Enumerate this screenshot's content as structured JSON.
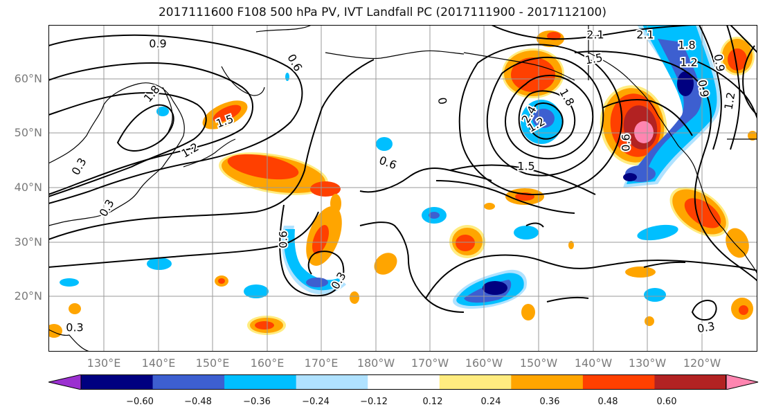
{
  "title": "2017111600 F108 500 hPa PV, IVT Landfall PC (2017111900 - 2017112100)",
  "latitude_labels": [
    "60°N",
    "50°N",
    "40°N",
    "30°N",
    "20°N"
  ],
  "longitude_labels": [
    "130°E",
    "140°E",
    "150°E",
    "160°E",
    "170°E",
    "180°W",
    "170°W",
    "160°W",
    "150°W",
    "140°W",
    "130°W",
    "120°W"
  ],
  "colorbar": {
    "ticks": [
      "−0.60",
      "−0.48",
      "−0.36",
      "−0.24",
      "−0.12",
      "0.12",
      "0.24",
      "0.36",
      "0.48",
      "0.60"
    ],
    "colors": [
      "#9b30d0",
      "#000080",
      "#3d5fd0",
      "#00bfff",
      "#b0e2ff",
      "#ffffff",
      "#ffec80",
      "#ffa500",
      "#ff4000",
      "#b22222",
      "#ff85b0"
    ]
  },
  "contour_labels": [
    "0.9",
    "0.6",
    "1.8",
    "1.5",
    "1.2",
    "0.3",
    "0.3",
    "0.6",
    "0.3",
    "0.6",
    "0.3",
    "0",
    "2.1",
    "2.4",
    "1.8",
    "1.2",
    "1.5",
    "1.5",
    "2.1",
    "1.8",
    "1.2",
    "0.9",
    "0.6",
    "0.9",
    "1.2",
    "0.3"
  ],
  "colors": {
    "contour": "#000000",
    "grid": "#9a9a9a",
    "coast": "#000000"
  }
}
